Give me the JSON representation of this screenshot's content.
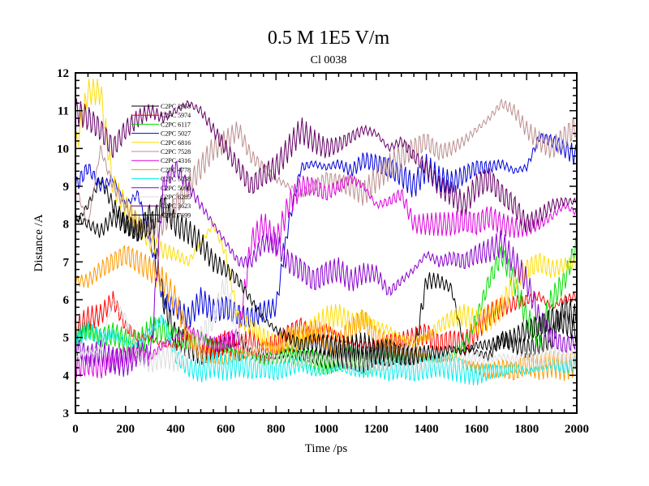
{
  "chart_data": {
    "type": "line",
    "title": "0.5 M 1E5 V/m",
    "subtitle": "Cl 0038",
    "xlabel": "Time /ps",
    "ylabel": "Distance /A",
    "xlim": [
      0,
      2000
    ],
    "ylim": [
      3,
      12
    ],
    "xticks": [
      0,
      200,
      400,
      600,
      800,
      1000,
      1200,
      1400,
      1600,
      1800,
      2000
    ],
    "yticks": [
      3,
      4,
      5,
      6,
      7,
      8,
      9,
      10,
      11,
      12
    ],
    "grid": false,
    "legend_position": "top-left",
    "x": [
      0,
      50,
      100,
      150,
      200,
      250,
      300,
      350,
      400,
      450,
      500,
      550,
      600,
      650,
      700,
      750,
      800,
      850,
      900,
      950,
      1000,
      1050,
      1100,
      1150,
      1200,
      1250,
      1300,
      1350,
      1400,
      1450,
      1500,
      1550,
      1600,
      1650,
      1700,
      1750,
      1800,
      1850,
      1900,
      1950,
      2000
    ],
    "series": [
      {
        "name": "C2PC 2958",
        "color": "#000000",
        "values": [
          8.0,
          8.5,
          9.2,
          8.5,
          8.0,
          7.8,
          8.3,
          6.0,
          5.0,
          4.8,
          4.6,
          4.7,
          4.8,
          5.0,
          4.6,
          4.5,
          4.5,
          4.6,
          4.5,
          4.5,
          4.4,
          4.5,
          4.5,
          4.4,
          4.6,
          4.5,
          4.6,
          4.5,
          6.5,
          6.5,
          6.3,
          4.8,
          4.6,
          4.5,
          5.0,
          4.8,
          4.7,
          4.8,
          5.0,
          5.8,
          5.5
        ]
      },
      {
        "name": "C2PC 5974",
        "color": "#ff0000",
        "values": [
          5.2,
          5.5,
          5.6,
          6.0,
          5.3,
          5.0,
          5.0,
          4.8,
          4.8,
          4.9,
          4.8,
          4.7,
          4.9,
          4.7,
          4.9,
          4.6,
          4.8,
          5.1,
          5.3,
          5.0,
          5.2,
          5.0,
          4.9,
          4.8,
          4.8,
          4.9,
          4.9,
          5.0,
          5.1,
          4.8,
          4.9,
          4.8,
          5.2,
          5.6,
          5.8,
          5.9,
          6.0,
          6.1,
          5.8,
          6.0,
          6.1
        ]
      },
      {
        "name": "C2PC 6117",
        "color": "#00dd00",
        "values": [
          5.0,
          5.2,
          5.0,
          5.1,
          4.9,
          4.8,
          5.2,
          5.2,
          5.0,
          4.9,
          5.0,
          4.8,
          4.7,
          4.6,
          4.5,
          4.4,
          4.5,
          4.6,
          4.5,
          4.4,
          4.3,
          4.4,
          4.5,
          4.3,
          4.4,
          4.4,
          4.5,
          4.4,
          4.5,
          4.4,
          4.5,
          4.8,
          5.5,
          6.5,
          7.2,
          6.5,
          5.5,
          5.0,
          6.0,
          6.5,
          7.5
        ]
      },
      {
        "name": "C2PC 5027",
        "color": "#0000dd",
        "values": [
          9.0,
          9.5,
          9.0,
          9.2,
          8.5,
          8.8,
          7.5,
          6.0,
          5.8,
          5.5,
          6.0,
          5.7,
          5.8,
          5.6,
          5.5,
          5.7,
          5.8,
          8.0,
          9.5,
          9.6,
          9.5,
          9.6,
          9.4,
          9.7,
          9.6,
          9.5,
          9.3,
          9.0,
          9.5,
          9.2,
          9.1,
          9.3,
          9.5,
          9.5,
          9.6,
          9.4,
          9.5,
          10.3,
          10.2,
          10.0,
          9.8
        ]
      },
      {
        "name": "C2PC 6816",
        "color": "#ffdd00",
        "values": [
          10.0,
          11.5,
          11.5,
          9.0,
          8.5,
          8.0,
          7.5,
          7.3,
          7.2,
          7.0,
          7.5,
          8.0,
          7.2,
          5.5,
          5.3,
          5.0,
          4.8,
          5.0,
          5.0,
          5.2,
          5.5,
          5.6,
          5.4,
          5.5,
          5.3,
          5.2,
          5.0,
          4.9,
          5.0,
          5.3,
          5.5,
          5.6,
          5.4,
          5.5,
          5.8,
          6.5,
          6.8,
          7.0,
          6.8,
          6.9,
          7.0
        ]
      },
      {
        "name": "C2PC 7528",
        "color": "#bc8f8f",
        "values": [
          9.0,
          8.0,
          10.0,
          9.0,
          8.5,
          8.0,
          7.8,
          8.0,
          8.5,
          9.0,
          9.5,
          10.0,
          10.2,
          10.5,
          9.8,
          9.5,
          9.2,
          9.0,
          8.8,
          9.0,
          9.2,
          9.1,
          9.0,
          8.8,
          9.2,
          9.5,
          9.8,
          10.0,
          10.2,
          9.9,
          10.0,
          10.2,
          10.5,
          10.8,
          11.2,
          11.0,
          10.5,
          10.2,
          10.0,
          10.3,
          10.6
        ]
      },
      {
        "name": "C2PC 4316",
        "color": "#dd00dd",
        "values": [
          4.2,
          4.3,
          4.2,
          4.4,
          4.5,
          4.6,
          4.5,
          4.8,
          5.0,
          5.2,
          5.0,
          4.8,
          4.9,
          5.0,
          7.5,
          8.0,
          7.5,
          8.5,
          9.0,
          9.0,
          8.8,
          9.0,
          9.2,
          9.0,
          8.5,
          8.6,
          8.8,
          8.0,
          8.0,
          8.0,
          8.0,
          8.1,
          8.0,
          8.2,
          8.0,
          7.9,
          7.9,
          8.0,
          8.2,
          8.5,
          8.3
        ]
      },
      {
        "name": "C2PC 4778",
        "color": "#ff9900",
        "values": [
          6.5,
          6.5,
          6.8,
          7.0,
          7.2,
          7.0,
          6.8,
          6.5,
          6.0,
          5.0,
          4.6,
          4.5,
          4.4,
          4.5,
          4.6,
          4.8,
          4.7,
          4.8,
          4.9,
          5.2,
          5.0,
          4.8,
          5.2,
          5.5,
          5.0,
          4.8,
          4.8,
          4.6,
          4.5,
          4.4,
          4.5,
          4.3,
          4.2,
          4.1,
          4.2,
          4.1,
          4.3,
          4.2,
          4.3,
          4.2,
          4.3
        ]
      },
      {
        "name": "C2PC 5038",
        "color": "#00eeee",
        "values": [
          5.0,
          5.2,
          5.0,
          5.1,
          4.9,
          4.8,
          5.2,
          5.5,
          4.5,
          4.2,
          4.1,
          4.3,
          4.2,
          4.3,
          4.2,
          4.2,
          4.1,
          4.2,
          4.3,
          4.1,
          4.1,
          4.2,
          4.1,
          4.1,
          4.2,
          4.1,
          4.2,
          4.1,
          4.2,
          4.3,
          4.2,
          4.1,
          4.0,
          4.1,
          4.1,
          4.2,
          4.1,
          4.2,
          4.3,
          4.2,
          4.3
        ]
      },
      {
        "name": "C2PC 5090",
        "color": "#8800cc",
        "values": [
          4.8,
          4.5,
          4.6,
          4.4,
          4.3,
          4.6,
          4.5,
          9.0,
          9.5,
          9.0,
          8.5,
          8.0,
          7.5,
          7.0,
          7.0,
          7.5,
          7.5,
          7.0,
          6.8,
          6.5,
          6.7,
          6.8,
          6.5,
          6.7,
          6.7,
          6.2,
          6.5,
          6.8,
          7.2,
          7.0,
          7.1,
          7.0,
          7.2,
          7.3,
          7.5,
          7.0,
          6.5,
          5.5,
          5.0,
          4.8,
          4.9
        ]
      },
      {
        "name": "C2PC 6285",
        "color": "#dddddd",
        "values": [
          4.5,
          4.6,
          4.7,
          6.0,
          5.5,
          4.5,
          4.3,
          4.5,
          4.4,
          4.6,
          5.0,
          5.5,
          6.5,
          5.0,
          4.6,
          4.5,
          4.4,
          4.5,
          4.3,
          4.4,
          4.4,
          4.5,
          4.4,
          4.3,
          4.4,
          4.5,
          4.4,
          4.5,
          4.4,
          4.4,
          4.5,
          4.4,
          4.5,
          4.4,
          4.5,
          4.4,
          4.5,
          4.4,
          4.5,
          4.4,
          4.5
        ]
      },
      {
        "name": "C2PC 3623",
        "color": "#660066",
        "values": [
          11.0,
          10.8,
          10.5,
          10.0,
          10.5,
          10.8,
          11.0,
          10.8,
          11.0,
          11.2,
          11.0,
          10.5,
          10.0,
          9.5,
          9.0,
          9.3,
          9.5,
          10.0,
          10.5,
          10.2,
          10.0,
          10.1,
          10.3,
          10.5,
          10.4,
          10.0,
          10.2,
          9.8,
          9.5,
          9.0,
          8.8,
          8.5,
          9.0,
          9.2,
          8.8,
          8.5,
          8.0,
          8.2,
          8.5,
          8.6,
          8.6
        ]
      },
      {
        "name": "C2PC 7699",
        "color": "#000000",
        "values": [
          8.2,
          8.0,
          7.8,
          8.2,
          8.0,
          7.8,
          8.0,
          8.5,
          8.0,
          7.8,
          7.5,
          7.0,
          6.8,
          6.5,
          6.0,
          5.5,
          5.2,
          5.0,
          4.8,
          4.9,
          4.8,
          4.7,
          4.7,
          4.8,
          4.6,
          4.7,
          4.5,
          4.5,
          4.6,
          4.6,
          4.7,
          4.6,
          4.8,
          4.8,
          4.9,
          5.0,
          5.2,
          5.3,
          5.5,
          5.4,
          5.2
        ]
      }
    ]
  }
}
